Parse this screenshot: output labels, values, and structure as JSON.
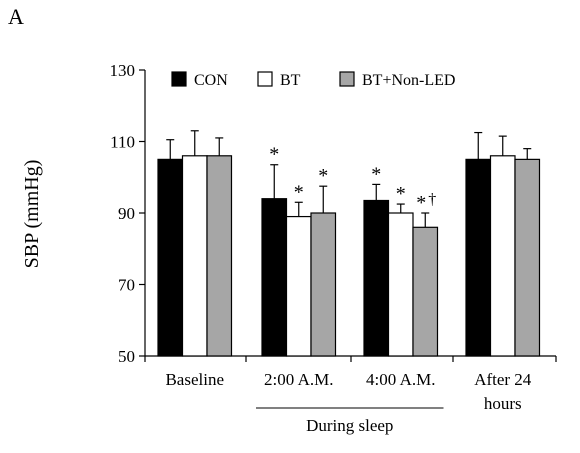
{
  "panel_label": "A",
  "chart_data": {
    "type": "bar",
    "title": "",
    "xlabel": "",
    "ylabel": "SBP (mmHg)",
    "ylim": [
      50,
      130
    ],
    "yticks": [
      50,
      70,
      90,
      110,
      130
    ],
    "grid": false,
    "legend_position": "top",
    "categories": [
      "Baseline",
      "2:00 A.M.",
      "4:00 A.M.",
      "After 24 hours"
    ],
    "category_labels": [
      [
        "Baseline"
      ],
      [
        "2:00 A.M."
      ],
      [
        "4:00 A.M."
      ],
      [
        "After 24",
        "hours"
      ]
    ],
    "group_bracket": {
      "label": "During sleep",
      "categories": [
        "2:00 A.M.",
        "4:00 A.M."
      ]
    },
    "series": [
      {
        "name": "CON",
        "color": "#000000",
        "values": [
          105,
          94,
          93.5,
          105
        ],
        "errors": [
          5.5,
          9.5,
          4.5,
          7.5
        ]
      },
      {
        "name": "BT",
        "color": "#ffffff",
        "values": [
          106,
          89,
          90,
          106
        ],
        "errors": [
          7,
          4,
          2.5,
          5.5
        ]
      },
      {
        "name": "BT+Non-LED",
        "color": "#a6a6a6",
        "values": [
          106,
          90,
          86,
          105
        ],
        "errors": [
          5,
          7.5,
          4,
          3
        ]
      }
    ],
    "annotations": [
      {
        "category": "2:00 A.M.",
        "series": "CON",
        "text": "*"
      },
      {
        "category": "2:00 A.M.",
        "series": "BT",
        "text": "*"
      },
      {
        "category": "2:00 A.M.",
        "series": "BT+Non-LED",
        "text": "*"
      },
      {
        "category": "4:00 A.M.",
        "series": "CON",
        "text": "*"
      },
      {
        "category": "4:00 A.M.",
        "series": "BT",
        "text": "*"
      },
      {
        "category": "4:00 A.M.",
        "series": "BT+Non-LED",
        "text": "*",
        "extra": "†"
      }
    ]
  }
}
